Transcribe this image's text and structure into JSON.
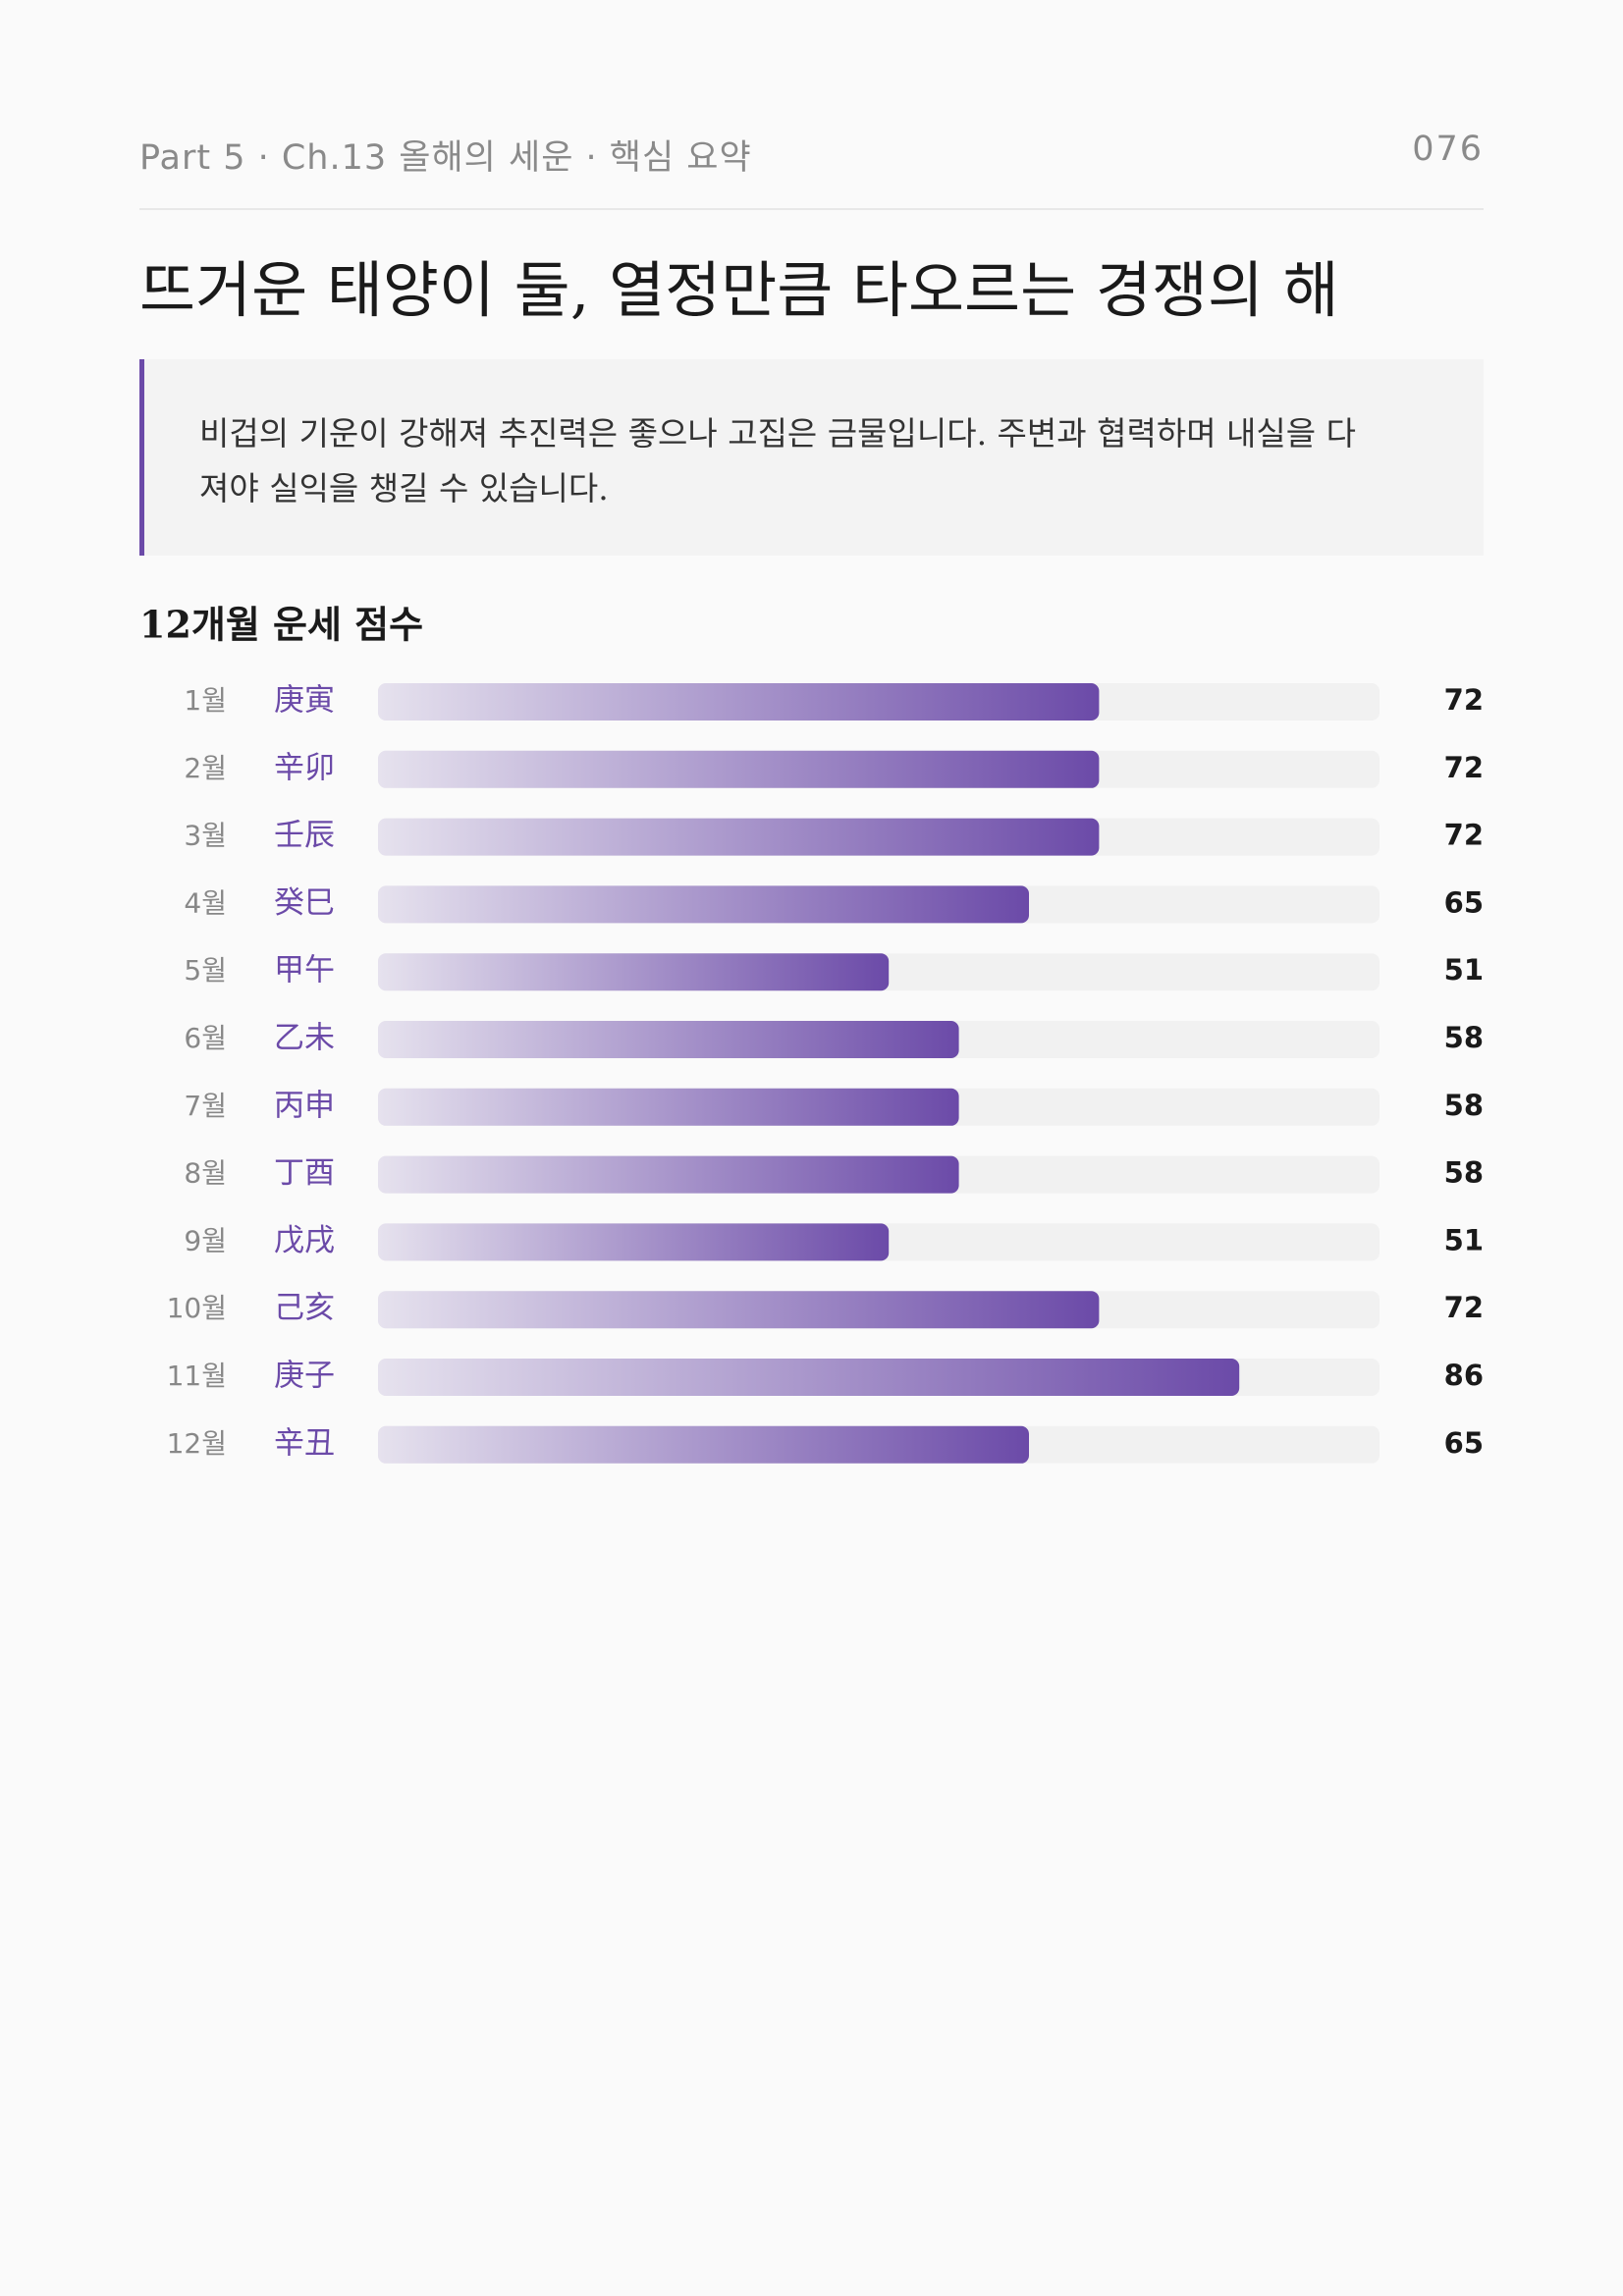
{
  "header": {
    "breadcrumb": "Part 5 · Ch.13 올해의 세운 · 핵심 요약",
    "page_number": "076"
  },
  "title": "뜨거운 태양이 둘, 열정만큼 타오르는 경쟁의 해",
  "quote": "비겁의 기운이 강해져 추진력은 좋으나 고집은 금물입니다. 주변과 협력하며 내실을 다져야 실익을 챙길 수 있습니다.",
  "chart_data": {
    "type": "bar",
    "title": "12개월 운세 점수",
    "categories": [
      "1월",
      "2월",
      "3월",
      "4월",
      "5월",
      "6월",
      "7월",
      "8월",
      "9월",
      "10월",
      "11월",
      "12월"
    ],
    "ganji": [
      "庚寅",
      "辛卯",
      "壬辰",
      "癸巳",
      "甲午",
      "乙未",
      "丙申",
      "丁酉",
      "戊戌",
      "己亥",
      "庚子",
      "辛丑"
    ],
    "values": [
      72,
      72,
      72,
      65,
      51,
      58,
      58,
      58,
      51,
      72,
      86,
      65
    ],
    "xlim": [
      0,
      100
    ],
    "color": "#6b4aa8"
  }
}
